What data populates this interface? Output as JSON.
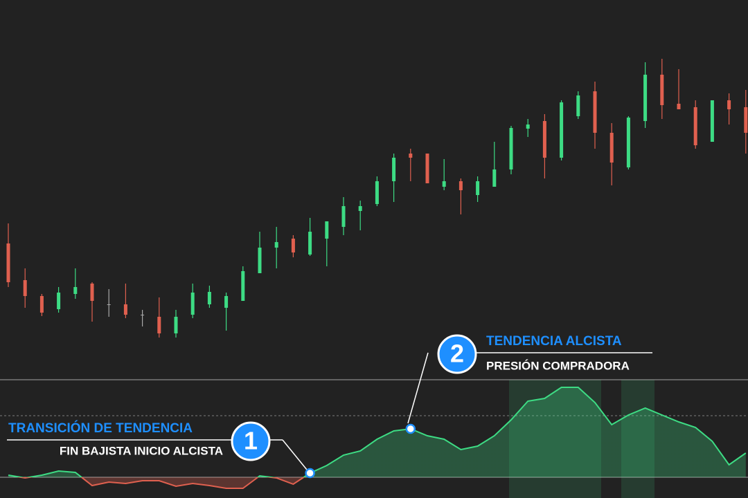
{
  "chart_data": [
    {
      "type": "candlestick",
      "ylim": [
        0,
        720
      ],
      "up_color": "#3ddc84",
      "down_color": "#e0604f",
      "flat_color": "#aaaaaa",
      "open": [
        368,
        315,
        292,
        273,
        295,
        310,
        280,
        280,
        265,
        262,
        238,
        265,
        280,
        275,
        285,
        325,
        362,
        375,
        352,
        375,
        392,
        415,
        425,
        458,
        498,
        498,
        450,
        458,
        438,
        450,
        475,
        534,
        545,
        492,
        552,
        588,
        528,
        478,
        545,
        612,
        570,
        565,
        515,
        575,
        565
      ],
      "high": [
        397,
        332,
        295,
        305,
        332,
        312,
        302,
        310,
        272,
        290,
        272,
        310,
        307,
        297,
        335,
        385,
        392,
        380,
        405,
        400,
        435,
        430,
        465,
        498,
        505,
        498,
        490,
        462,
        465,
        515,
        538,
        548,
        555,
        575,
        588,
        602,
        542,
        552,
        630,
        635,
        620,
        575,
        575,
        585,
        590
      ],
      "low": [
        305,
        275,
        263,
        268,
        288,
        255,
        262,
        260,
        248,
        232,
        232,
        260,
        275,
        242,
        285,
        325,
        332,
        348,
        350,
        335,
        380,
        387,
        422,
        428,
        458,
        455,
        445,
        410,
        428,
        450,
        468,
        522,
        462,
        488,
        548,
        505,
        452,
        475,
        535,
        548,
        562,
        505,
        515,
        540,
        498
      ],
      "close": [
        312,
        292,
        268,
        297,
        305,
        285,
        280,
        265,
        265,
        238,
        262,
        297,
        298,
        292,
        328,
        362,
        370,
        355,
        385,
        400,
        422,
        422,
        458,
        492,
        492,
        455,
        458,
        445,
        458,
        475,
        535,
        540,
        492,
        572,
        582,
        528,
        485,
        550,
        612,
        568,
        562,
        510,
        575,
        562,
        528
      ]
    },
    {
      "type": "area",
      "ylim": [
        -30,
        141
      ],
      "up_color": "#3ddc84",
      "down_color": "#e0604f",
      "reference_lines": [
        {
          "value": 141,
          "style": "solid"
        },
        {
          "value": 89,
          "style": "dashed"
        },
        {
          "value": 0,
          "style": "solid"
        }
      ],
      "values": [
        3,
        -1,
        3,
        9,
        7,
        -12,
        -7,
        -9,
        -5,
        -5,
        -13,
        -9,
        -12,
        -16,
        -16,
        2,
        -1,
        -10,
        6,
        17,
        32,
        38,
        55,
        67,
        70,
        60,
        55,
        40,
        45,
        60,
        83,
        110,
        114,
        130,
        130,
        108,
        76,
        90,
        100,
        90,
        80,
        72,
        52,
        18,
        35
      ],
      "annotations": [
        {
          "number": "1",
          "title": "TRANSICIÓN DE TENDENCIA",
          "subtitle": "FIN BAJISTA INICIO ALCISTA"
        },
        {
          "number": "2",
          "title": "TENDENCIA ALCISTA",
          "subtitle": "PRESIÓN COMPRADORA"
        }
      ]
    }
  ]
}
